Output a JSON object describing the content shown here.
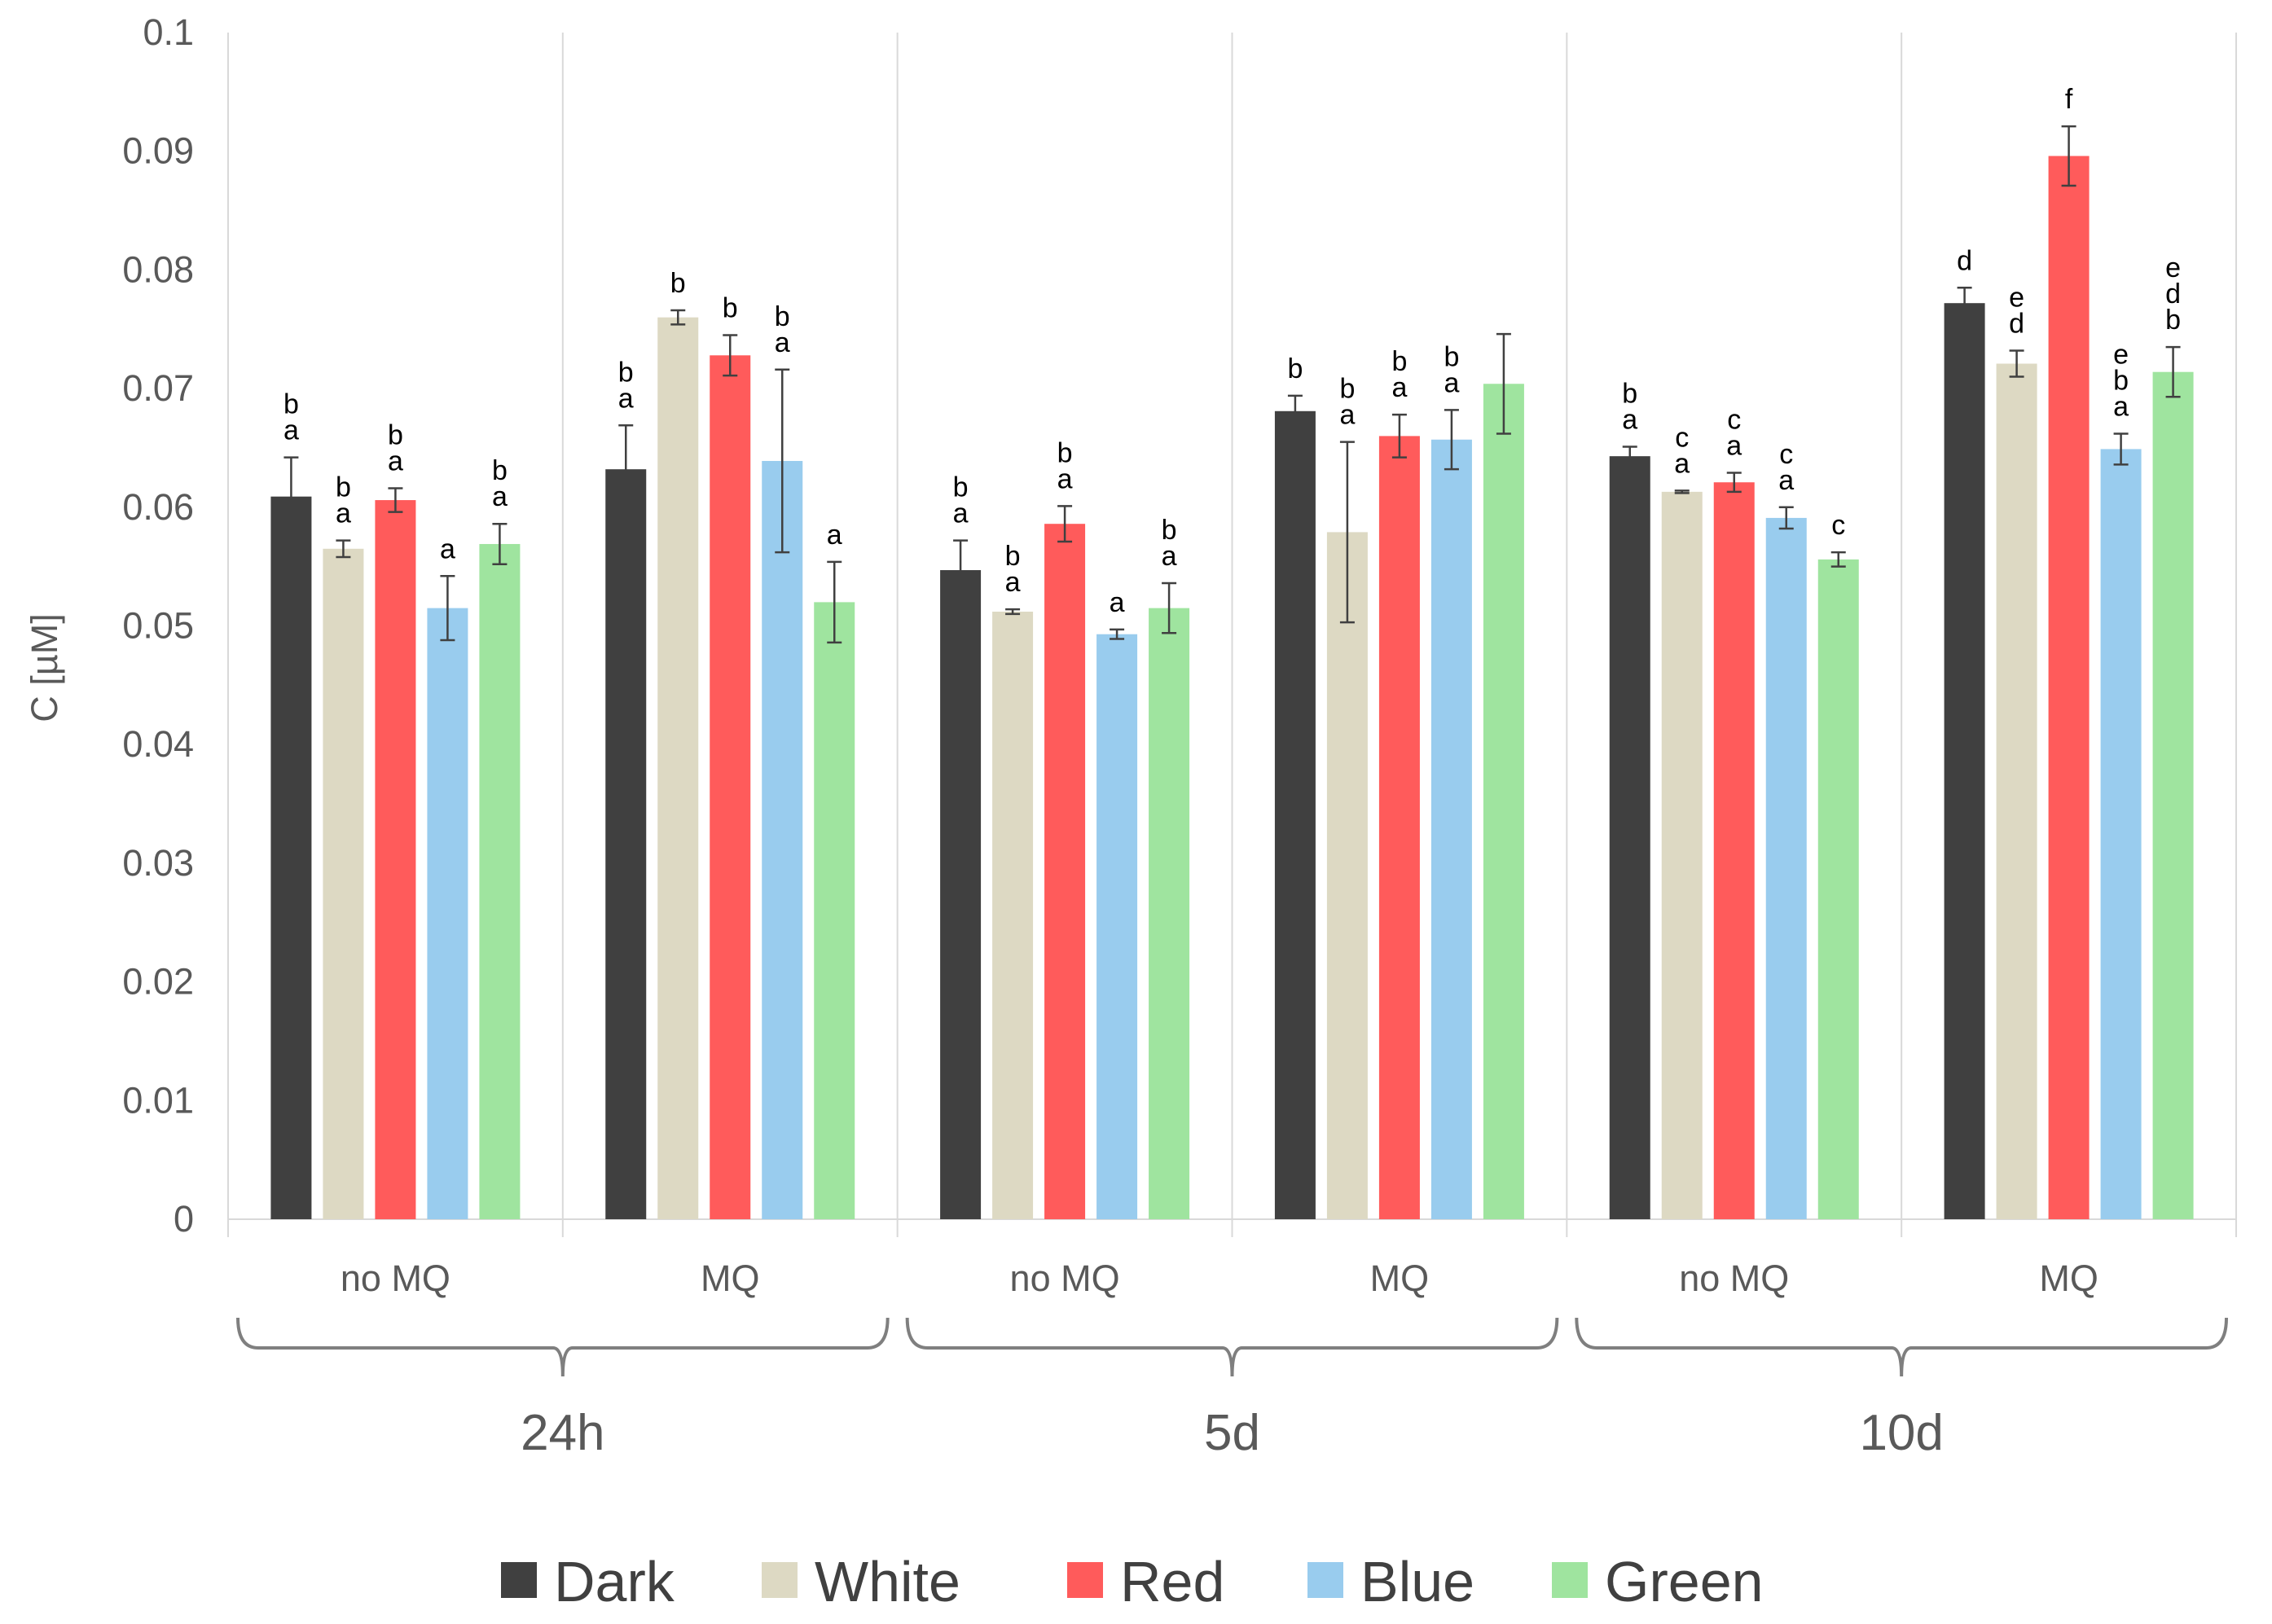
{
  "chart_data": {
    "type": "bar",
    "ylabel": "C [µM]",
    "ylim": [
      0,
      0.1
    ],
    "yticks": [
      0,
      0.01,
      0.02,
      0.03,
      0.04,
      0.05,
      0.06,
      0.07,
      0.08,
      0.09,
      0.1
    ],
    "ytick_labels": [
      "0",
      "0.01",
      "0.02",
      "0.03",
      "0.04",
      "0.05",
      "0.06",
      "0.07",
      "0.08",
      "0.09",
      "0.1"
    ],
    "grid": "vertical separators between groups",
    "legend_position": "bottom",
    "periods": [
      "24h",
      "5d",
      "10d"
    ],
    "categories": [
      "no MQ",
      "MQ",
      "no MQ",
      "MQ",
      "no MQ",
      "MQ"
    ],
    "series": [
      {
        "name": "Dark",
        "color": "#404040",
        "values": [
          0.0609,
          0.0632,
          0.0547,
          0.0681,
          0.0643,
          0.0772
        ],
        "errors": [
          0.0033,
          0.0037,
          0.0025,
          0.0013,
          0.0008,
          0.0013
        ],
        "letters": [
          [
            "b",
            "a"
          ],
          [
            "b",
            "a"
          ],
          [
            "b",
            "a"
          ],
          [
            "b"
          ],
          [
            "b",
            "a"
          ],
          [
            "d"
          ]
        ]
      },
      {
        "name": "White",
        "color": "#DDD9C3",
        "values": [
          0.0565,
          0.076,
          0.0512,
          0.0579,
          0.0613,
          0.0721
        ],
        "errors": [
          0.0007,
          0.0006,
          0.0002,
          0.0076,
          0.0001,
          0.0011
        ],
        "letters": [
          [
            "b",
            "a"
          ],
          [
            "b"
          ],
          [
            "b",
            "a"
          ],
          [
            "b",
            "a"
          ],
          [
            "c",
            "a"
          ],
          [
            "e",
            "d"
          ]
        ]
      },
      {
        "name": "Red",
        "color": "#FF5B5B",
        "values": [
          0.0606,
          0.0728,
          0.0586,
          0.066,
          0.0621,
          0.0896
        ],
        "errors": [
          0.001,
          0.0017,
          0.0015,
          0.0018,
          0.0008,
          0.0025
        ],
        "letters": [
          [
            "b",
            "a"
          ],
          [
            "b"
          ],
          [
            "b",
            "a"
          ],
          [
            "b",
            "a"
          ],
          [
            "c",
            "a"
          ],
          [
            "f"
          ]
        ]
      },
      {
        "name": "Blue",
        "color": "#99CCEE",
        "values": [
          0.0515,
          0.0639,
          0.0493,
          0.0657,
          0.0591,
          0.0649
        ],
        "errors": [
          0.0027,
          0.0077,
          0.0004,
          0.0025,
          0.0009,
          0.0013
        ],
        "letters": [
          [
            "a"
          ],
          [
            "b",
            "a"
          ],
          [
            "a"
          ],
          [
            "b",
            "a"
          ],
          [
            "c",
            "a"
          ],
          [
            "e",
            "b",
            "a"
          ]
        ]
      },
      {
        "name": "Green",
        "color": "#9FE49F",
        "values": [
          0.0569,
          0.052,
          0.0515,
          0.0704,
          0.0556,
          0.0714
        ],
        "errors": [
          0.0017,
          0.0034,
          0.0021,
          0.0042,
          0.0006,
          0.0021
        ],
        "letters": [
          [
            "b",
            "a"
          ],
          [
            "a"
          ],
          [
            "b",
            "a"
          ],
          [],
          [
            "c"
          ],
          [
            "e",
            "d",
            "b"
          ]
        ]
      }
    ]
  }
}
